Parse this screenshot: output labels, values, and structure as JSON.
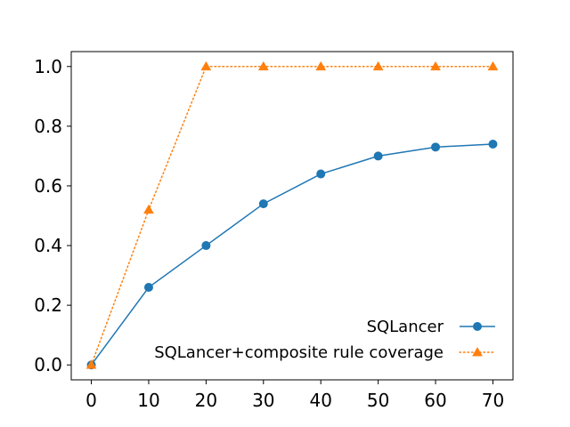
{
  "chart_data": {
    "type": "line",
    "title": "",
    "xlabel": "",
    "ylabel": "",
    "x": [
      0,
      10,
      20,
      30,
      40,
      50,
      60,
      70
    ],
    "xlim": [
      -3.5,
      73.5
    ],
    "ylim": [
      -0.05,
      1.05
    ],
    "x_ticks": [
      "0",
      "10",
      "20",
      "30",
      "40",
      "50",
      "60",
      "70"
    ],
    "y_ticks": [
      "0.0",
      "0.2",
      "0.4",
      "0.6",
      "0.8",
      "1.0"
    ],
    "grid": false,
    "legend_position": "lower-right",
    "series": [
      {
        "name": "SQLancer",
        "values": [
          0.0,
          0.26,
          0.4,
          0.54,
          0.64,
          0.7,
          0.73,
          0.74
        ],
        "color": "#1f77b4",
        "line_style": "solid",
        "marker": "circle"
      },
      {
        "name": "SQLancer+composite rule coverage",
        "values": [
          0.0,
          0.52,
          1.0,
          1.0,
          1.0,
          1.0,
          1.0,
          1.0
        ],
        "color": "#ff7f0e",
        "line_style": "dotted",
        "marker": "triangle"
      }
    ]
  }
}
